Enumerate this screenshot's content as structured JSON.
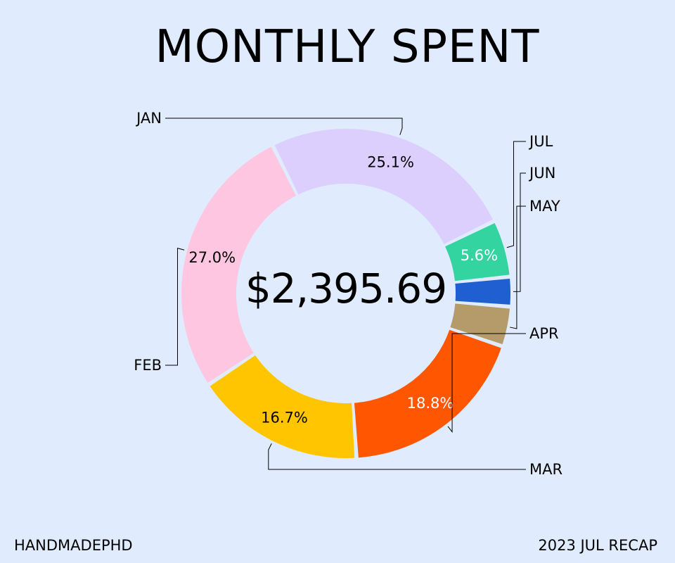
{
  "title": "MONTHLY SPENT",
  "total": "$2,395.69",
  "footer": {
    "left": "HANDMADEPHD",
    "right": "2023 JUL RECAP"
  },
  "chart_data": {
    "type": "pie",
    "title": "MONTHLY SPENT",
    "categories": [
      "JAN",
      "FEB",
      "MAR",
      "APR",
      "MAY",
      "JUN",
      "JUL"
    ],
    "values": [
      25.1,
      27.0,
      16.7,
      18.8,
      3.9,
      2.9,
      5.6
    ],
    "labels": [
      "25.1%",
      "27.0%",
      "16.7%",
      "18.8%",
      "",
      "",
      "5.6%"
    ],
    "colors": [
      "#dccffd",
      "#fec6e1",
      "#ffc600",
      "#ff5601",
      "#b49b69",
      "#1f5fd1",
      "#34d4a0"
    ],
    "label_colors": [
      "#000000",
      "#000000",
      "#000000",
      "#ffffff",
      "#000000",
      "#000000",
      "#ffffff"
    ],
    "donut": true,
    "legend": "none"
  }
}
